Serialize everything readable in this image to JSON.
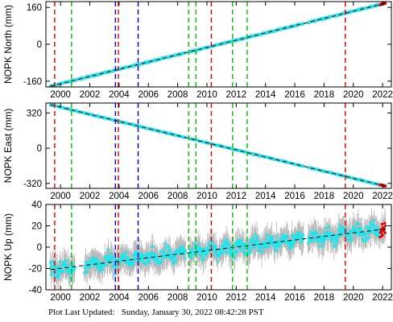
{
  "footer": {
    "label": "Plot Last Updated:",
    "timestamp": "Sunday, January 30, 2022 08:42:28 PST"
  },
  "x_axis": {
    "ticks": [
      2000,
      2002,
      2004,
      2006,
      2008,
      2010,
      2012,
      2014,
      2016,
      2018,
      2020,
      2022
    ],
    "xlim": [
      1999.0,
      2022.6
    ]
  },
  "vertical_lines": [
    {
      "x": 1999.6,
      "color": "#e00000"
    },
    {
      "x": 2000.75,
      "color": "#00c000"
    },
    {
      "x": 2003.75,
      "color": "#0000d0"
    },
    {
      "x": 2003.95,
      "color": "#e00000"
    },
    {
      "x": 2005.3,
      "color": "#0000d0"
    },
    {
      "x": 2008.75,
      "color": "#00c000"
    },
    {
      "x": 2009.25,
      "color": "#00c000"
    },
    {
      "x": 2010.3,
      "color": "#e00000"
    },
    {
      "x": 2011.75,
      "color": "#00c000"
    },
    {
      "x": 2012.75,
      "color": "#00c000"
    },
    {
      "x": 2019.45,
      "color": "#e00000"
    }
  ],
  "colors": {
    "data": "#18e8f0",
    "errorbar": "#b8b8b8",
    "trend": "#000000",
    "recent": "#e00000"
  },
  "chart_data": [
    {
      "type": "scatter",
      "ylabel": "NOPK North (mm)",
      "ylim": [
        -185,
        185
      ],
      "yticks": [
        -160,
        0,
        160
      ],
      "trend": {
        "x": [
          1999.3,
          2022.2
        ],
        "y": [
          -182,
          178
        ]
      },
      "gaps": [
        [
          2008.55,
          2008.8
        ],
        [
          2016.6,
          2016.9
        ]
      ],
      "noise": 2.0
    },
    {
      "type": "scatter",
      "ylabel": "NOPK East (mm)",
      "ylim": [
        -365,
        410
      ],
      "yticks": [
        -320,
        0,
        320
      ],
      "trend": {
        "x": [
          1999.3,
          2022.2
        ],
        "y": [
          395,
          -345
        ]
      },
      "gaps": [
        [
          2008.55,
          2008.8
        ],
        [
          2016.6,
          2016.9
        ]
      ],
      "noise": 3.0
    },
    {
      "type": "scatter",
      "ylabel": "NOPK Up (mm)",
      "ylim": [
        -40,
        40
      ],
      "yticks": [
        -40,
        -20,
        0,
        20,
        40
      ],
      "trend": {
        "x": [
          1999.3,
          2022.2
        ],
        "y": [
          -21,
          17
        ]
      },
      "gaps": [
        [
          2001.0,
          2001.6
        ],
        [
          2008.55,
          2008.8
        ],
        [
          2016.6,
          2016.9
        ]
      ],
      "noise": 4.5
    }
  ]
}
